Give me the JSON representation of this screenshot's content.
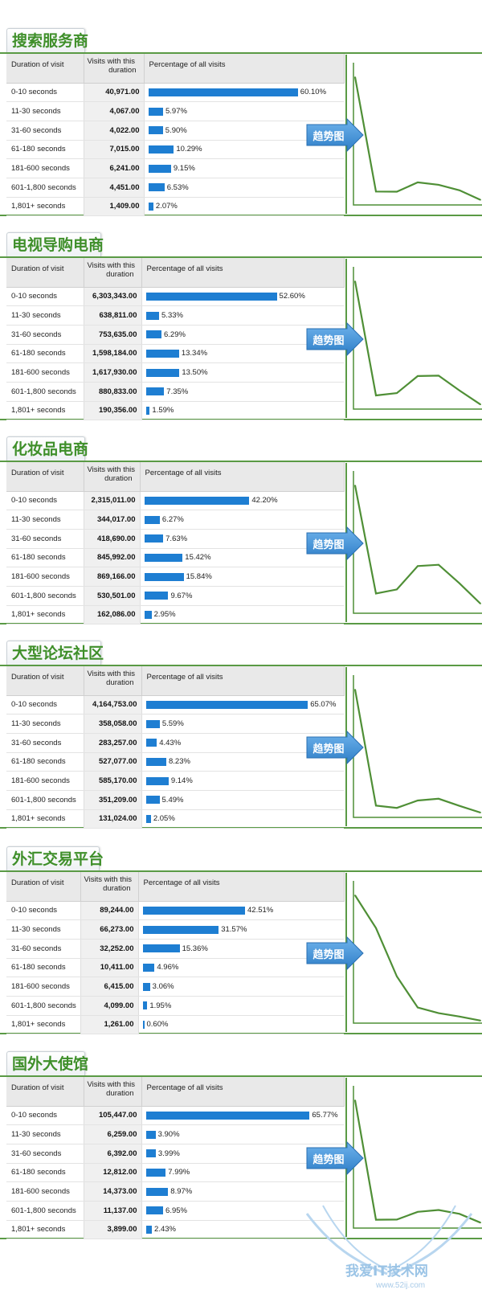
{
  "headers": {
    "duration": "Duration of visit",
    "visits_line1": "Visits with this",
    "visits_line2": "duration",
    "pct": "Percentage of all visits"
  },
  "arrow_label": "趋势图",
  "watermark": {
    "text": "我爱IT技术网",
    "url": "www.52ij.com"
  },
  "colors": {
    "bar": "#1e7ed2",
    "title": "#3f8f2a",
    "frame": "#5a9a45",
    "trend_line": "#4f8f36",
    "arrow": "#2f7fc8"
  },
  "chart_data": [
    {
      "type": "table",
      "title": "搜索服务商",
      "categories": [
        "0-10 seconds",
        "11-30 seconds",
        "31-60 seconds",
        "61-180 seconds",
        "181-600 seconds",
        "601-1,800 seconds",
        "1,801+ seconds"
      ],
      "visits": [
        "40,971.00",
        "4,067.00",
        "4,022.00",
        "7,015.00",
        "6,241.00",
        "4,451.00",
        "1,409.00"
      ],
      "percent": [
        60.1,
        5.97,
        5.9,
        10.29,
        9.15,
        6.53,
        2.07
      ],
      "percent_labels": [
        "60.10%",
        "5.97%",
        "5.90%",
        "10.29%",
        "9.15%",
        "6.53%",
        "2.07%"
      ]
    },
    {
      "type": "table",
      "title": "电视导购电商",
      "categories": [
        "0-10 seconds",
        "11-30 seconds",
        "31-60 seconds",
        "61-180 seconds",
        "181-600 seconds",
        "601-1,800 seconds",
        "1,801+ seconds"
      ],
      "visits": [
        "6,303,343.00",
        "638,811.00",
        "753,635.00",
        "1,598,184.00",
        "1,617,930.00",
        "880,833.00",
        "190,356.00"
      ],
      "percent": [
        52.6,
        5.33,
        6.29,
        13.34,
        13.5,
        7.35,
        1.59
      ],
      "percent_labels": [
        "52.60%",
        "5.33%",
        "6.29%",
        "13.34%",
        "13.50%",
        "7.35%",
        "1.59%"
      ]
    },
    {
      "type": "table",
      "title": "化妆品电商",
      "categories": [
        "0-10 seconds",
        "11-30 seconds",
        "31-60 seconds",
        "61-180 seconds",
        "181-600 seconds",
        "601-1,800 seconds",
        "1,801+ seconds"
      ],
      "visits": [
        "2,315,011.00",
        "344,017.00",
        "418,690.00",
        "845,992.00",
        "869,166.00",
        "530,501.00",
        "162,086.00"
      ],
      "percent": [
        42.2,
        6.27,
        7.63,
        15.42,
        15.84,
        9.67,
        2.95
      ],
      "percent_labels": [
        "42.20%",
        "6.27%",
        "7.63%",
        "15.42%",
        "15.84%",
        "9.67%",
        "2.95%"
      ]
    },
    {
      "type": "table",
      "title": "大型论坛社区",
      "categories": [
        "0-10 seconds",
        "11-30 seconds",
        "31-60 seconds",
        "61-180 seconds",
        "181-600 seconds",
        "601-1,800 seconds",
        "1,801+ seconds"
      ],
      "visits": [
        "4,164,753.00",
        "358,058.00",
        "283,257.00",
        "527,077.00",
        "585,170.00",
        "351,209.00",
        "131,024.00"
      ],
      "percent": [
        65.07,
        5.59,
        4.43,
        8.23,
        9.14,
        5.49,
        2.05
      ],
      "percent_labels": [
        "65.07%",
        "5.59%",
        "4.43%",
        "8.23%",
        "9.14%",
        "5.49%",
        "2.05%"
      ]
    },
    {
      "type": "table",
      "title": "外汇交易平台",
      "categories": [
        "0-10 seconds",
        "11-30 seconds",
        "31-60 seconds",
        "61-180 seconds",
        "181-600 seconds",
        "601-1,800 seconds",
        "1,801+ seconds"
      ],
      "visits": [
        "89,244.00",
        "66,273.00",
        "32,252.00",
        "10,411.00",
        "6,415.00",
        "4,099.00",
        "1,261.00"
      ],
      "percent": [
        42.51,
        31.57,
        15.36,
        4.96,
        3.06,
        1.95,
        0.6
      ],
      "percent_labels": [
        "42.51%",
        "31.57%",
        "15.36%",
        "4.96%",
        "3.06%",
        "1.95%",
        "0.60%"
      ]
    },
    {
      "type": "table",
      "title": "国外大使馆",
      "categories": [
        "0-10 seconds",
        "11-30 seconds",
        "31-60 seconds",
        "61-180 seconds",
        "181-600 seconds",
        "601-1,800 seconds",
        "1,801+ seconds"
      ],
      "visits": [
        "105,447.00",
        "6,259.00",
        "6,392.00",
        "12,812.00",
        "14,373.00",
        "11,137.00",
        "3,899.00"
      ],
      "percent": [
        65.77,
        3.9,
        3.99,
        7.99,
        8.97,
        6.95,
        2.43
      ],
      "percent_labels": [
        "65.77%",
        "3.90%",
        "3.99%",
        "7.99%",
        "8.97%",
        "6.95%",
        "2.43%"
      ]
    }
  ]
}
